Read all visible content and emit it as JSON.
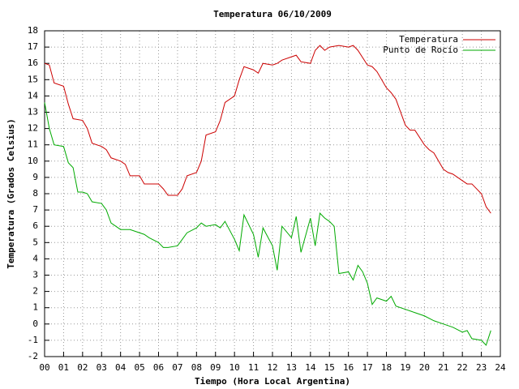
{
  "chart_data": {
    "type": "line",
    "title": "Temperatura 06/10/2009",
    "x_label": "Tiempo (Hora Local Argentina)",
    "y_label": "Temperatura (Grados Celsius)",
    "xlim": [
      0,
      24
    ],
    "ylim": [
      -2,
      18
    ],
    "xticks": [
      {
        "value": 0,
        "label": "00"
      },
      {
        "value": 1,
        "label": "01"
      },
      {
        "value": 2,
        "label": "02"
      },
      {
        "value": 3,
        "label": "03"
      },
      {
        "value": 4,
        "label": "04"
      },
      {
        "value": 5,
        "label": "05"
      },
      {
        "value": 6,
        "label": "06"
      },
      {
        "value": 7,
        "label": "07"
      },
      {
        "value": 8,
        "label": "08"
      },
      {
        "value": 9,
        "label": "09"
      },
      10,
      11,
      12,
      13,
      14,
      15,
      16,
      17,
      18,
      19,
      20,
      21,
      22,
      23,
      24
    ],
    "yticks": [
      -2,
      -1,
      0,
      1,
      2,
      3,
      4,
      5,
      6,
      7,
      8,
      9,
      10,
      11,
      12,
      13,
      14,
      15,
      16,
      17,
      18
    ],
    "grid": true,
    "legend": "top-right",
    "series": [
      {
        "name": "Temperatura",
        "color": "#cc0000",
        "x": [
          0,
          0.25,
          0.5,
          1,
          1.25,
          1.5,
          2,
          2.25,
          2.5,
          3,
          3.25,
          3.5,
          4,
          4.25,
          4.5,
          5,
          5.25,
          5.5,
          6,
          6.25,
          6.5,
          7,
          7.25,
          7.5,
          8,
          8.25,
          8.5,
          9,
          9.25,
          9.5,
          10,
          10.25,
          10.5,
          11,
          11.25,
          11.5,
          12,
          12.25,
          12.5,
          13,
          13.25,
          13.5,
          14,
          14.25,
          14.5,
          14.75,
          15,
          15.5,
          16,
          16.25,
          16.5,
          17,
          17.25,
          17.5,
          18,
          18.25,
          18.5,
          19,
          19.25,
          19.5,
          20,
          20.25,
          20.5,
          21,
          21.25,
          21.5,
          22,
          22.25,
          22.5,
          23,
          23.25,
          23.5
        ],
        "values": [
          16.0,
          15.9,
          14.8,
          14.6,
          13.5,
          12.6,
          12.5,
          12.0,
          11.1,
          10.9,
          10.7,
          10.2,
          10.0,
          9.8,
          9.1,
          9.1,
          8.6,
          8.6,
          8.6,
          8.3,
          7.9,
          7.9,
          8.3,
          9.1,
          9.3,
          10.0,
          11.6,
          11.8,
          12.5,
          13.6,
          14.0,
          15.0,
          15.8,
          15.6,
          15.4,
          16.0,
          15.9,
          16.0,
          16.2,
          16.4,
          16.5,
          16.1,
          16.0,
          16.8,
          17.1,
          16.8,
          17.0,
          17.1,
          17.0,
          17.1,
          16.8,
          15.9,
          15.8,
          15.5,
          14.5,
          14.2,
          13.8,
          12.2,
          11.9,
          11.9,
          11.0,
          10.7,
          10.5,
          9.5,
          9.3,
          9.2,
          8.8,
          8.6,
          8.6,
          8.0,
          7.2,
          6.8
        ]
      },
      {
        "name": "Punto de Rocío",
        "color": "#00aa00",
        "x": [
          0,
          0.25,
          0.5,
          1,
          1.25,
          1.5,
          1.75,
          2,
          2.25,
          2.5,
          3,
          3.25,
          3.5,
          4,
          4.5,
          5,
          5.25,
          5.5,
          6,
          6.25,
          6.5,
          7,
          7.25,
          7.5,
          8,
          8.25,
          8.5,
          9,
          9.25,
          9.5,
          10,
          10.25,
          10.5,
          11,
          11.25,
          11.5,
          12,
          12.25,
          12.5,
          13,
          13.25,
          13.5,
          14,
          14.25,
          14.5,
          14.75,
          15,
          15.25,
          15.5,
          16,
          16.25,
          16.5,
          16.75,
          17,
          17.25,
          17.5,
          18,
          18.25,
          18.5,
          19,
          19.5,
          20,
          20.5,
          21,
          21.5,
          22,
          22.25,
          22.5,
          23,
          23.25,
          23.5
        ],
        "values": [
          13.6,
          12.0,
          11.0,
          10.9,
          9.9,
          9.6,
          8.1,
          8.1,
          8.0,
          7.5,
          7.4,
          7.0,
          6.2,
          5.8,
          5.8,
          5.6,
          5.5,
          5.3,
          5.0,
          4.7,
          4.7,
          4.8,
          5.2,
          5.6,
          5.9,
          6.2,
          6.0,
          6.1,
          5.9,
          6.3,
          5.2,
          4.5,
          6.7,
          5.5,
          4.1,
          5.9,
          4.8,
          3.3,
          6.0,
          5.3,
          6.6,
          4.4,
          6.5,
          4.8,
          6.8,
          6.5,
          6.3,
          6.0,
          3.1,
          3.2,
          2.7,
          3.6,
          3.2,
          2.5,
          1.2,
          1.6,
          1.4,
          1.7,
          1.1,
          0.9,
          0.7,
          0.5,
          0.2,
          0.0,
          -0.2,
          -0.5,
          -0.4,
          -0.9,
          -1.0,
          -1.3,
          -0.4
        ]
      }
    ]
  }
}
